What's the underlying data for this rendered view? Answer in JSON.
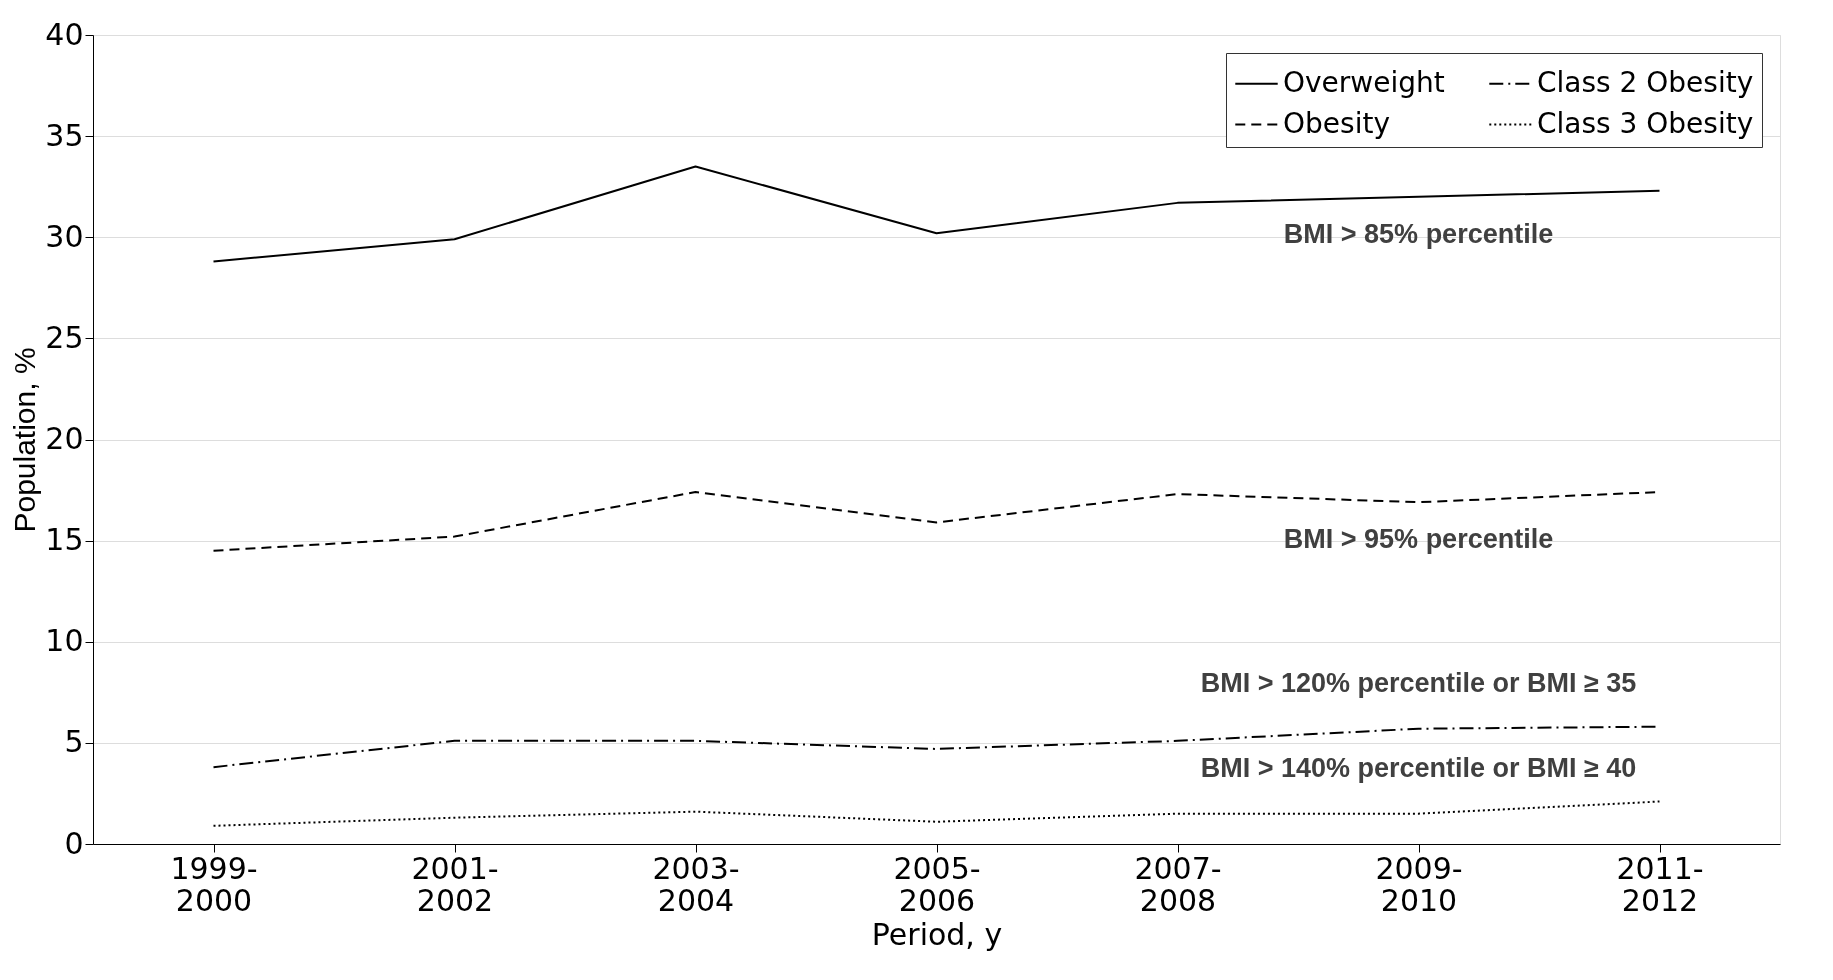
{
  "chart_data": {
    "type": "line",
    "xlabel": "Period, y",
    "ylabel": "Population, %",
    "categories": [
      "1999-2000",
      "2001-2002",
      "2003-2004",
      "2005-2006",
      "2007-2008",
      "2009-2010",
      "2011-2012"
    ],
    "series": [
      {
        "name": "Overweight",
        "color": "#000000",
        "line_style": "solid",
        "values": [
          28.8,
          29.9,
          33.5,
          30.2,
          31.7,
          32.0,
          32.3
        ]
      },
      {
        "name": "Obesity",
        "color": "#000000",
        "line_style": "dashed",
        "values": [
          14.5,
          15.2,
          17.4,
          15.9,
          17.3,
          16.9,
          17.4
        ]
      },
      {
        "name": "Class 2 Obesity",
        "color": "#000000",
        "line_style": "dashdot",
        "values": [
          3.8,
          5.1,
          5.1,
          4.7,
          5.1,
          5.7,
          5.8
        ]
      },
      {
        "name": "Class 3 Obesity",
        "color": "#000000",
        "line_style": "dotted",
        "values": [
          0.9,
          1.3,
          1.6,
          1.1,
          1.5,
          1.5,
          2.1
        ]
      }
    ],
    "ylim": [
      0,
      40
    ],
    "yticks": [
      0,
      5,
      10,
      15,
      20,
      25,
      30,
      35,
      40
    ],
    "grid": "y",
    "legend": "top right",
    "marker": "none",
    "annotations": [
      "BMI > 85% percentile",
      "BMI > 95% percentile",
      "BMI > 120% percentile or BMI ≥ 35",
      "BMI > 140% percentile or BMI ≥ 40"
    ]
  }
}
